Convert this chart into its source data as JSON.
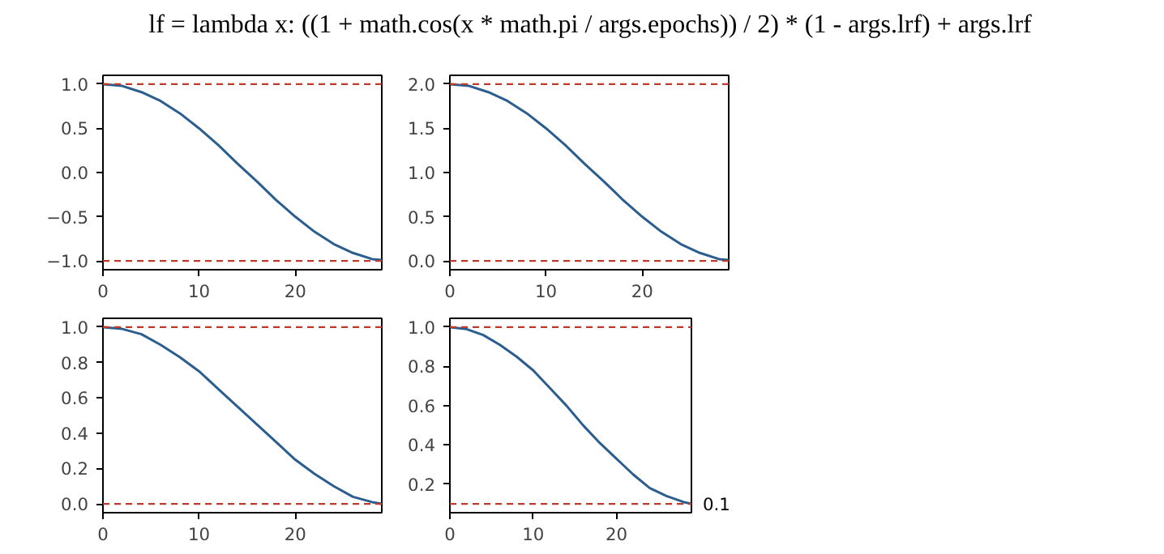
{
  "chart_data": [
    {
      "type": "line",
      "title": "lf = lambda x: ((1 + math.cos(x * math.pi / args.epochs)) / 2) * (1 - args.lrf) + args.lrf",
      "x": [
        0,
        2,
        4,
        6,
        8,
        10,
        12,
        14,
        16,
        18,
        20,
        22,
        24,
        26,
        28,
        29
      ],
      "values": [
        1,
        0.98,
        0.91,
        0.81,
        0.67,
        0.5,
        0.31,
        0.1,
        -0.1,
        -0.31,
        -0.5,
        -0.67,
        -0.81,
        -0.91,
        -0.98,
        -0.99
      ],
      "color": "#2b5d8f",
      "xlim": [
        0,
        29
      ],
      "xticks": [
        0,
        10,
        20
      ],
      "ylim": [
        -1.1,
        1.1
      ],
      "yticks": [
        {
          "value": -1,
          "label": "−1.0"
        },
        {
          "value": -0.5,
          "label": "−0.5"
        },
        {
          "value": 0,
          "label": "0.0"
        },
        {
          "value": 0.5,
          "label": "0.5"
        },
        {
          "value": 1,
          "label": "1.0"
        }
      ],
      "ref_lines": [
        {
          "axis": "y",
          "value": 1,
          "color": "#c0392b",
          "line_style": "dashed"
        },
        {
          "axis": "y",
          "value": -1,
          "color": "#c0392b",
          "line_style": "dashed"
        }
      ]
    },
    {
      "type": "line",
      "x": [
        0,
        2,
        4,
        6,
        8,
        10,
        12,
        14,
        16,
        18,
        20,
        22,
        24,
        26,
        28,
        29
      ],
      "values": [
        2,
        1.98,
        1.91,
        1.81,
        1.67,
        1.5,
        1.31,
        1.1,
        0.9,
        0.69,
        0.5,
        0.33,
        0.19,
        0.09,
        0.02,
        0.01
      ],
      "color": "#2b5d8f",
      "xlim": [
        0,
        29
      ],
      "xticks": [
        0,
        10,
        20
      ],
      "ylim": [
        -0.1,
        2.1
      ],
      "yticks": [
        {
          "value": 0,
          "label": "0.0"
        },
        {
          "value": 0.5,
          "label": "0.5"
        },
        {
          "value": 1,
          "label": "1.0"
        },
        {
          "value": 1.5,
          "label": "1.5"
        },
        {
          "value": 2,
          "label": "2.0"
        }
      ],
      "ref_lines": [
        {
          "axis": "y",
          "value": 2,
          "color": "#c0392b",
          "line_style": "dashed"
        },
        {
          "axis": "y",
          "value": 0,
          "color": "#c0392b",
          "line_style": "dashed"
        }
      ]
    },
    {
      "type": "line",
      "x": [
        0,
        2,
        4,
        6,
        8,
        10,
        12,
        14,
        16,
        18,
        20,
        22,
        24,
        26,
        28,
        29
      ],
      "values": [
        1,
        0.99,
        0.96,
        0.9,
        0.83,
        0.75,
        0.65,
        0.55,
        0.45,
        0.35,
        0.25,
        0.17,
        0.1,
        0.04,
        0.01,
        0
      ],
      "color": "#2b5d8f",
      "xlim": [
        0,
        29
      ],
      "xticks": [
        0,
        10,
        20
      ],
      "ylim": [
        -0.05,
        1.05
      ],
      "yticks": [
        {
          "value": 0,
          "label": "0.0"
        },
        {
          "value": 0.2,
          "label": "0.2"
        },
        {
          "value": 0.4,
          "label": "0.4"
        },
        {
          "value": 0.6,
          "label": "0.6"
        },
        {
          "value": 0.8,
          "label": "0.8"
        },
        {
          "value": 1,
          "label": "1.0"
        }
      ],
      "ref_lines": [
        {
          "axis": "y",
          "value": 1,
          "color": "#c0392b",
          "line_style": "dashed"
        },
        {
          "axis": "y",
          "value": 0,
          "color": "#c0392b",
          "line_style": "dashed"
        }
      ]
    },
    {
      "type": "line",
      "x": [
        0,
        2,
        4,
        6,
        8,
        10,
        12,
        14,
        16,
        18,
        20,
        22,
        24,
        26,
        28,
        29
      ],
      "values": [
        1,
        0.99,
        0.96,
        0.91,
        0.85,
        0.78,
        0.69,
        0.6,
        0.5,
        0.41,
        0.33,
        0.25,
        0.18,
        0.14,
        0.11,
        0.1
      ],
      "color": "#2b5d8f",
      "xlim": [
        0,
        29
      ],
      "xticks": [
        0,
        10,
        20
      ],
      "ylim": [
        0.055,
        1.045
      ],
      "yticks": [
        {
          "value": 0.2,
          "label": "0.2"
        },
        {
          "value": 0.4,
          "label": "0.4"
        },
        {
          "value": 0.6,
          "label": "0.6"
        },
        {
          "value": 0.8,
          "label": "0.8"
        },
        {
          "value": 1,
          "label": "1.0"
        }
      ],
      "ref_lines": [
        {
          "axis": "y",
          "value": 1,
          "color": "#c0392b",
          "line_style": "dashed"
        },
        {
          "axis": "y",
          "value": 0.1,
          "color": "#c0392b",
          "line_style": "dashed"
        }
      ],
      "annotations": [
        {
          "text": "0.1",
          "x": 29,
          "y": 0.1
        }
      ]
    }
  ]
}
